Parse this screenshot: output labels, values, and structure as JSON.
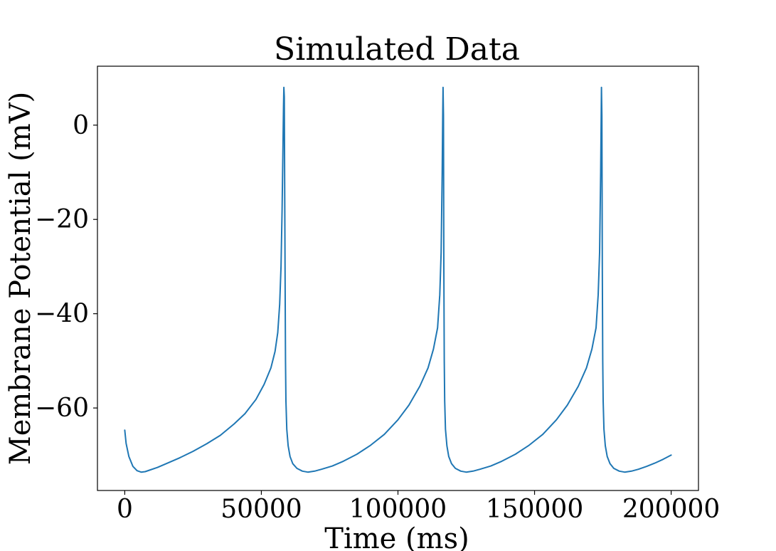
{
  "chart_data": {
    "type": "line",
    "title": "Simulated Data",
    "xlabel": "Time (ms)",
    "ylabel": "Membrane Potential (mV)",
    "xlim": [
      -10000,
      210000
    ],
    "ylim": [
      -77.5,
      12.5
    ],
    "xticks": [
      0,
      50000,
      100000,
      150000,
      200000
    ],
    "xtick_labels": [
      "0",
      "50000",
      "100000",
      "150000",
      "200000"
    ],
    "yticks": [
      0,
      -20,
      -40,
      -60
    ],
    "ytick_labels": [
      "0",
      "−20",
      "−40",
      "−60"
    ],
    "grid": false,
    "legend": "none",
    "series": [
      {
        "color": "#1f77b4",
        "x": [
          0,
          500,
          1500,
          3000,
          4500,
          6000,
          7500,
          9000,
          12000,
          16000,
          20000,
          25000,
          30000,
          35000,
          40000,
          44000,
          48000,
          51000,
          53500,
          55000,
          56000,
          56700,
          57200,
          57600,
          57900,
          58100,
          58250,
          58400,
          58550,
          58700,
          58850,
          59000,
          59300,
          59800,
          60500,
          61500,
          63000,
          65000,
          67000,
          69500,
          72000,
          76000,
          80000,
          85000,
          90000,
          95000,
          100000,
          104000,
          108000,
          111000,
          113000,
          114500,
          115300,
          115800,
          116200,
          116400,
          116500,
          116650,
          116800,
          116950,
          117100,
          117400,
          117900,
          118600,
          119600,
          121000,
          123000,
          125000,
          127500,
          130000,
          134000,
          138000,
          143000,
          148000,
          153000,
          158000,
          162000,
          166000,
          169000,
          171000,
          172500,
          173300,
          173800,
          174200,
          174400,
          174500,
          174650,
          174800,
          174950,
          175100,
          175400,
          175900,
          176600,
          177600,
          179000,
          181000,
          183000,
          185500,
          188000,
          191000,
          194000,
          197000,
          200000
        ],
        "values": [
          -64.7,
          -67.5,
          -70.3,
          -72.4,
          -73.3,
          -73.6,
          -73.5,
          -73.2,
          -72.6,
          -71.6,
          -70.6,
          -69.2,
          -67.6,
          -65.8,
          -63.4,
          -61.2,
          -58.2,
          -55.0,
          -51.5,
          -48.0,
          -44.0,
          -38.0,
          -30.0,
          -18.0,
          -5.0,
          4.0,
          8.0,
          6.0,
          -15.0,
          -35.0,
          -50.0,
          -58.5,
          -64.5,
          -68.0,
          -70.3,
          -71.8,
          -72.8,
          -73.4,
          -73.6,
          -73.4,
          -73.0,
          -72.3,
          -71.3,
          -69.8,
          -67.9,
          -65.6,
          -62.5,
          -59.4,
          -55.4,
          -51.5,
          -47.5,
          -43.0,
          -36.0,
          -27.0,
          -10.0,
          3.0,
          8.0,
          2.0,
          -30.0,
          -50.0,
          -58.5,
          -64.5,
          -68.0,
          -70.3,
          -71.8,
          -72.8,
          -73.4,
          -73.6,
          -73.4,
          -73.0,
          -72.3,
          -71.3,
          -69.8,
          -67.9,
          -65.6,
          -62.5,
          -59.4,
          -55.4,
          -51.5,
          -47.5,
          -43.0,
          -36.0,
          -27.0,
          -10.0,
          3.0,
          8.0,
          2.0,
          -30.0,
          -50.0,
          -58.5,
          -64.5,
          -68.0,
          -70.3,
          -71.8,
          -72.8,
          -73.4,
          -73.6,
          -73.4,
          -73.0,
          -72.4,
          -71.7,
          -70.9,
          -70.0
        ]
      }
    ]
  }
}
